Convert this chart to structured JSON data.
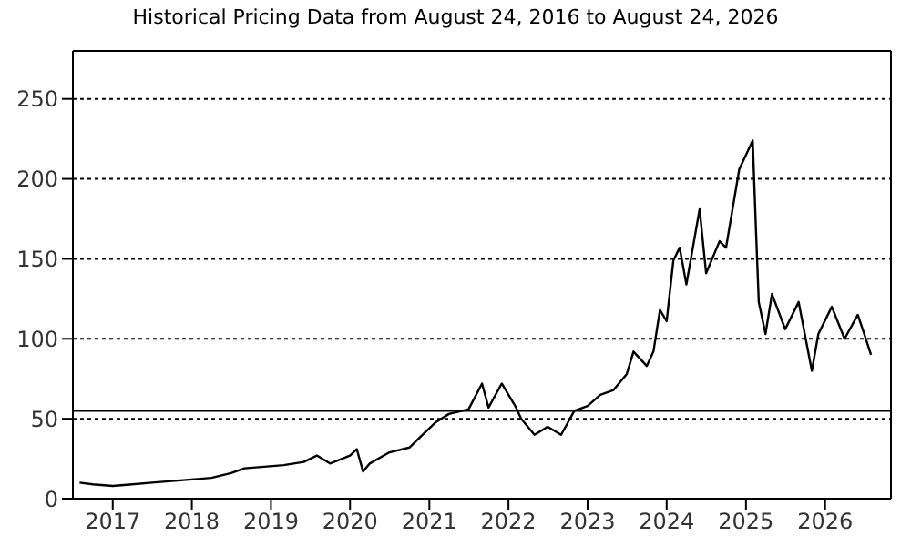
{
  "chart_data": {
    "type": "line",
    "title": "Historical Pricing Data from August 24, 2016 to August 24, 2026",
    "x": [
      "2016-08",
      "2016-10",
      "2017-01",
      "2017-04",
      "2017-07",
      "2017-10",
      "2018-01",
      "2018-04",
      "2018-07",
      "2018-09",
      "2018-12",
      "2019-03",
      "2019-06",
      "2019-08",
      "2019-10",
      "2020-01",
      "2020-02",
      "2020-03",
      "2020-04",
      "2020-07",
      "2020-10",
      "2020-12",
      "2021-02",
      "2021-04",
      "2021-07",
      "2021-09",
      "2021-10",
      "2021-12",
      "2022-02",
      "2022-03",
      "2022-05",
      "2022-07",
      "2022-09",
      "2022-11",
      "2023-01",
      "2023-03",
      "2023-05",
      "2023-07",
      "2023-08",
      "2023-10",
      "2023-11",
      "2023-12",
      "2024-01",
      "2024-02",
      "2024-03",
      "2024-04",
      "2024-06",
      "2024-07",
      "2024-09",
      "2024-10",
      "2024-12",
      "2025-02",
      "2025-02-15",
      "2025-03",
      "2025-04",
      "2025-05",
      "2025-07",
      "2025-09",
      "2025-11",
      "2025-12",
      "2026-02",
      "2026-04",
      "2026-06",
      "2026-07",
      "2026-08"
    ],
    "series": [
      {
        "color": "#000000",
        "values": [
          10,
          9,
          8,
          9,
          10,
          11,
          12,
          13,
          16,
          19,
          20,
          21,
          23,
          27,
          22,
          27,
          31,
          17,
          22,
          29,
          32,
          40,
          48,
          53,
          56,
          72,
          57,
          72,
          58,
          50,
          40,
          45,
          40,
          55,
          58,
          65,
          68,
          78,
          92,
          83,
          92,
          118,
          111,
          149,
          157,
          134,
          181,
          141,
          161,
          157,
          206,
          224,
          172,
          123,
          103,
          128,
          106,
          123,
          80,
          103,
          120,
          100,
          115,
          103,
          90
        ]
      }
    ],
    "xlim": [
      "2016-07",
      "2026-11"
    ],
    "xticks": [
      "2017",
      "2018",
      "2019",
      "2020",
      "2021",
      "2022",
      "2023",
      "2024",
      "2025",
      "2026"
    ],
    "ylim": [
      0,
      280
    ],
    "yticks": [
      0,
      50,
      100,
      150,
      200,
      250
    ],
    "grid": "y",
    "ref_lines": [
      {
        "axis": "y",
        "value": 55,
        "color": "#000000"
      }
    ]
  }
}
